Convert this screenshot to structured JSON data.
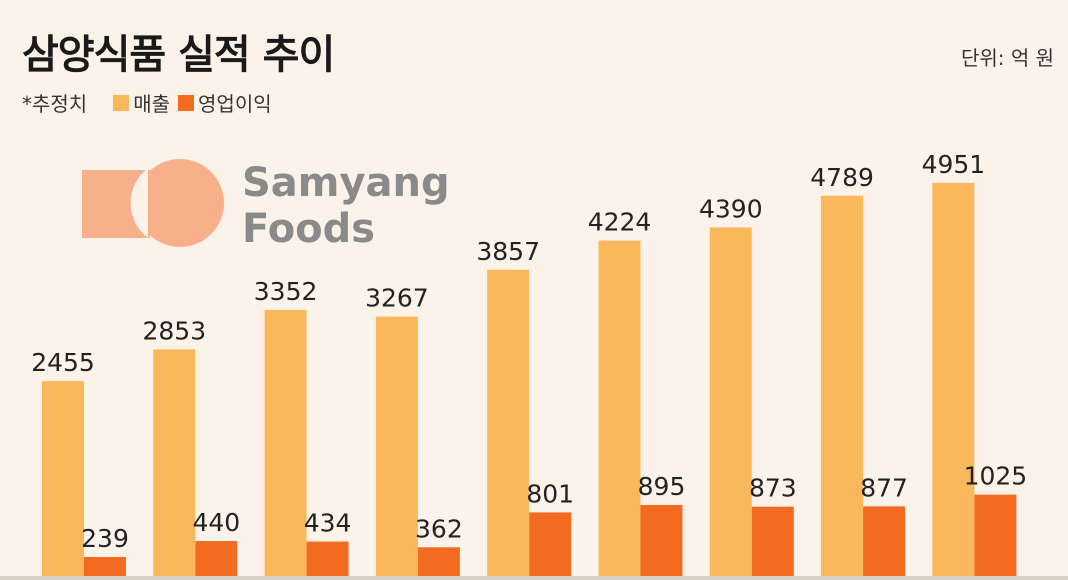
{
  "title": "삼양식품 실적 추이",
  "unit_label": "단위: 억 원",
  "estimate_note": "*추정치",
  "logo": {
    "line1": "Samyang",
    "line2": "Foods"
  },
  "colors": {
    "revenue": "#fbb75c",
    "operating_profit": "#f26b21",
    "background": "#fbf3ea",
    "logo": "#f7b08a",
    "logo_text": "#8a8a8a"
  },
  "chart_data": {
    "type": "bar",
    "categories": [
      "",
      "",
      "",
      "",
      "",
      "",
      "",
      "",
      ""
    ],
    "series": [
      {
        "name": "매출",
        "values": [
          2455,
          2853,
          3352,
          3267,
          3857,
          4224,
          4390,
          4789,
          4951
        ]
      },
      {
        "name": "영업이익",
        "values": [
          239,
          440,
          434,
          362,
          801,
          895,
          873,
          877,
          1025
        ]
      }
    ],
    "ylim": [
      0,
      5000
    ],
    "grid": false,
    "legend_position": "top-left"
  }
}
